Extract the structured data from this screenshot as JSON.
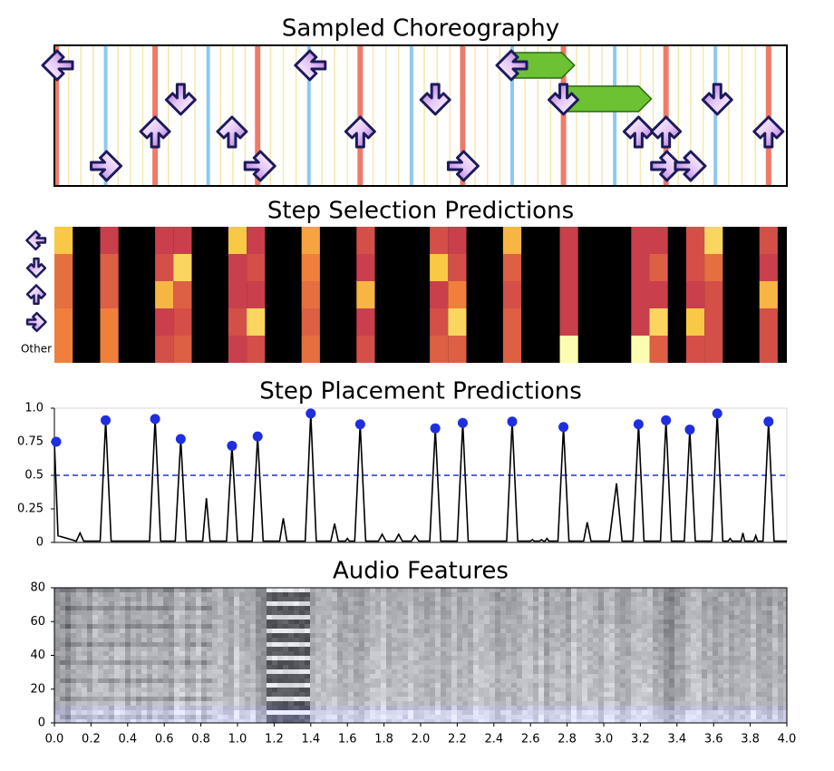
{
  "chart_data": [
    {
      "type": "steps",
      "title": "Sampled Choreography",
      "xlim": [
        0,
        4
      ],
      "beat_lines": [
        0.01,
        0.55,
        1.11,
        1.67,
        2.23,
        2.78,
        3.34,
        3.9
      ],
      "half_beat_lines": [
        0.28,
        0.84,
        1.39,
        1.95,
        2.5,
        3.06,
        3.61
      ],
      "steps": {
        "x": [
          0.0,
          0.28,
          0.55,
          0.69,
          0.97,
          1.12,
          1.4,
          1.67,
          2.08,
          2.23,
          2.5,
          2.78,
          3.19,
          3.34,
          3.34,
          3.47,
          3.62,
          3.9
        ],
        "lane": [
          0,
          3,
          2,
          1,
          2,
          3,
          0,
          2,
          1,
          3,
          0,
          1,
          2,
          2,
          3,
          3,
          1,
          2
        ]
      },
      "holds": {
        "x": [
          2.5,
          2.78
        ],
        "end": [
          2.84,
          3.26
        ],
        "lane": [
          0,
          1
        ]
      }
    },
    {
      "type": "heatmap",
      "title": "Step Selection Predictions",
      "xlim": [
        0,
        4
      ],
      "column_width": 0.1,
      "row_labels": [
        null,
        null,
        null,
        null,
        "Other"
      ],
      "colormap": [
        "#000000",
        "#7a1c4f",
        "#c93f4b",
        "#f07f3c",
        "#f9c845",
        "#fcfdb0"
      ],
      "x": [
        0.05,
        0.3,
        0.6,
        0.7,
        1.0,
        1.1,
        1.4,
        1.7,
        2.1,
        2.2,
        2.5,
        2.81,
        3.2,
        3.3,
        3.5,
        3.6,
        3.9
      ],
      "z": [
        [
          0.8,
          0.4,
          0.4,
          0.4,
          0.8,
          0.4,
          0.7,
          0.45,
          0.45,
          0.4,
          0.75,
          0.4,
          0.4,
          0.4,
          0.45,
          0.85,
          0.45
        ],
        [
          0.55,
          0.5,
          0.45,
          0.85,
          0.4,
          0.45,
          0.6,
          0.4,
          0.8,
          0.45,
          0.5,
          0.4,
          0.4,
          0.5,
          0.45,
          0.55,
          0.4
        ],
        [
          0.55,
          0.5,
          0.75,
          0.5,
          0.4,
          0.4,
          0.55,
          0.75,
          0.4,
          0.6,
          0.45,
          0.4,
          0.4,
          0.4,
          0.4,
          0.45,
          0.75
        ],
        [
          0.6,
          0.6,
          0.4,
          0.45,
          0.45,
          0.85,
          0.5,
          0.4,
          0.45,
          0.85,
          0.5,
          0.4,
          0.4,
          0.85,
          0.8,
          0.45,
          0.45
        ],
        [
          0.6,
          0.6,
          0.45,
          0.5,
          0.4,
          0.45,
          0.55,
          0.45,
          0.5,
          0.5,
          0.5,
          1.0,
          1.0,
          0.5,
          0.45,
          0.45,
          0.45
        ]
      ]
    },
    {
      "type": "line",
      "title": "Step Placement Predictions",
      "xlim": [
        0,
        4
      ],
      "ylim": [
        0,
        1.0
      ],
      "yticks": [
        0,
        0.25,
        0.5,
        0.75,
        {
          "value": 1.0,
          "label": "1.0"
        }
      ],
      "threshold": {
        "value": 0.5,
        "color": "#2233cc"
      },
      "series": [
        {
          "type": "line",
          "color": "#000000",
          "x": [
            0,
            0.02,
            0.12,
            0.14,
            0.16,
            0.25,
            0.28,
            0.31,
            0.52,
            0.55,
            0.58,
            0.66,
            0.69,
            0.72,
            0.81,
            0.83,
            0.85,
            0.94,
            0.97,
            1.0,
            1.08,
            1.11,
            1.14,
            1.23,
            1.25,
            1.27,
            1.37,
            1.4,
            1.43,
            1.51,
            1.53,
            1.55,
            1.59,
            1.6,
            1.61,
            1.64,
            1.67,
            1.7,
            1.77,
            1.79,
            1.81,
            1.86,
            1.88,
            1.9,
            1.95,
            1.97,
            1.99,
            2.05,
            2.08,
            2.11,
            2.2,
            2.23,
            2.26,
            2.47,
            2.5,
            2.53,
            2.6,
            2.61,
            2.62,
            2.65,
            2.66,
            2.67,
            2.68,
            2.69,
            2.7,
            2.75,
            2.78,
            2.81,
            2.89,
            2.91,
            2.93,
            3.03,
            3.07,
            3.1,
            3.16,
            3.19,
            3.22,
            3.31,
            3.34,
            3.37,
            3.44,
            3.47,
            3.5,
            3.59,
            3.62,
            3.65,
            3.68,
            3.69,
            3.7,
            3.75,
            3.76,
            3.77,
            3.82,
            3.83,
            3.84,
            3.87,
            3.9,
            3.93,
            4.0
          ],
          "values": [
            0.75,
            0.05,
            0.01,
            0.07,
            0.01,
            0.01,
            0.91,
            0.01,
            0.01,
            0.92,
            0.01,
            0.01,
            0.77,
            0.01,
            0.01,
            0.33,
            0.01,
            0.01,
            0.72,
            0.01,
            0.01,
            0.79,
            0.01,
            0.01,
            0.18,
            0.01,
            0.01,
            0.96,
            0.01,
            0.01,
            0.14,
            0.01,
            0.01,
            0.03,
            0.01,
            0.01,
            0.88,
            0.01,
            0.01,
            0.06,
            0.01,
            0.01,
            0.06,
            0.01,
            0.01,
            0.05,
            0.01,
            0.01,
            0.85,
            0.01,
            0.01,
            0.89,
            0.01,
            0.01,
            0.9,
            0.01,
            0.01,
            0.02,
            0.01,
            0.01,
            0.02,
            0.01,
            0.01,
            0.03,
            0.01,
            0.01,
            0.86,
            0.01,
            0.01,
            0.15,
            0.01,
            0.01,
            0.44,
            0.01,
            0.01,
            0.88,
            0.01,
            0.01,
            0.91,
            0.01,
            0.01,
            0.84,
            0.01,
            0.01,
            0.96,
            0.01,
            0.01,
            0.03,
            0.01,
            0.01,
            0.07,
            0.01,
            0.01,
            0.05,
            0.01,
            0.01,
            0.9,
            0.01,
            0.01
          ]
        },
        {
          "type": "scatter",
          "color": "#1f2ee0",
          "x": [
            0,
            0.28,
            0.55,
            0.69,
            0.97,
            1.11,
            1.4,
            1.67,
            2.08,
            2.23,
            2.5,
            2.78,
            3.19,
            3.34,
            3.47,
            3.62,
            3.9
          ],
          "values": [
            0.75,
            0.91,
            0.92,
            0.77,
            0.72,
            0.79,
            0.96,
            0.88,
            0.85,
            0.89,
            0.9,
            0.86,
            0.88,
            0.91,
            0.84,
            0.96,
            0.9
          ]
        }
      ]
    },
    {
      "type": "spectrogram",
      "title": "Audio Features",
      "xlim": [
        0,
        4
      ],
      "ylim": [
        0,
        80
      ],
      "yticks": [
        0,
        20,
        40,
        60,
        80
      ],
      "xticks": [
        {
          "value": 0,
          "label": "0.0"
        },
        {
          "value": 0.2,
          "label": "0.2"
        },
        {
          "value": 0.4,
          "label": "0.4"
        },
        {
          "value": 0.6,
          "label": "0.6"
        },
        {
          "value": 0.8,
          "label": "0.8"
        },
        {
          "value": 1.0,
          "label": "1.0"
        },
        {
          "value": 1.2,
          "label": "1.2"
        },
        {
          "value": 1.4,
          "label": "1.4"
        },
        {
          "value": 1.6,
          "label": "1.6"
        },
        {
          "value": 1.8,
          "label": "1.8"
        },
        {
          "value": 2.0,
          "label": "2.0"
        },
        {
          "value": 2.2,
          "label": "2.2"
        },
        {
          "value": 2.4,
          "label": "2.4"
        },
        {
          "value": 2.6,
          "label": "2.6"
        },
        {
          "value": 2.8,
          "label": "2.8"
        },
        {
          "value": 3.0,
          "label": "3.0"
        },
        {
          "value": 3.2,
          "label": "3.2"
        },
        {
          "value": 3.4,
          "label": "3.4"
        },
        {
          "value": 3.6,
          "label": "3.6"
        },
        {
          "value": 3.8,
          "label": "3.8"
        },
        {
          "value": 4.0,
          "label": "4.0"
        }
      ]
    }
  ]
}
